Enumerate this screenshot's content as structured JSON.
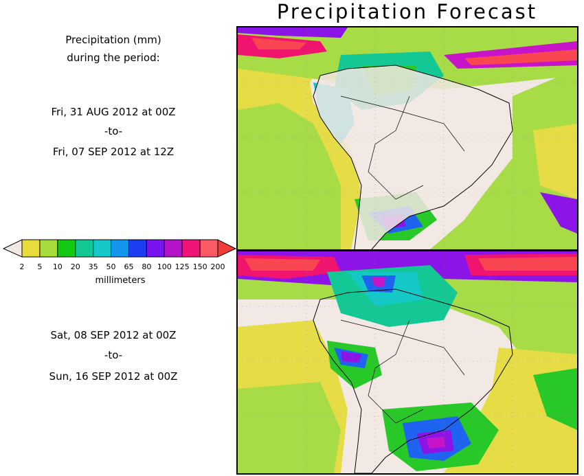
{
  "title": "Precipitation Forecast",
  "header": {
    "line1": "Precipitation (mm)",
    "line2": "during the period:"
  },
  "period1": {
    "start": "Fri, 31 AUG 2012 at 00Z",
    "to": "-to-",
    "end": "Fri, 07 SEP 2012 at 12Z"
  },
  "period2": {
    "start": "Sat, 08 SEP 2012 at 00Z",
    "to": "-to-",
    "end": "Sun, 16 SEP 2012 at 00Z"
  },
  "legend": {
    "unit": "millimeters",
    "ticks": [
      "2",
      "5",
      "10",
      "20",
      "35",
      "50",
      "65",
      "80",
      "100",
      "125",
      "150",
      "200"
    ],
    "colors": [
      "#e8dc3c",
      "#a8dc3c",
      "#14c814",
      "#14c896",
      "#14c8c8",
      "#1496f0",
      "#1e3cf0",
      "#7814f0",
      "#b414c8",
      "#f01478",
      "#fa5a64"
    ],
    "low_color": "#f2e8e4",
    "high_color": "#f23c3c"
  },
  "map_colors": {
    "land_bg": "#f2e8e4",
    "yellow": "#e6dc46",
    "lightgreen": "#a8dc46",
    "green": "#28c828",
    "teal": "#14c896",
    "cyan": "#14c8c8",
    "blue": "#1e64f0",
    "purple": "#8c14e6",
    "magenta": "#c814c8",
    "pink": "#f0146e",
    "red": "#fa4650"
  }
}
